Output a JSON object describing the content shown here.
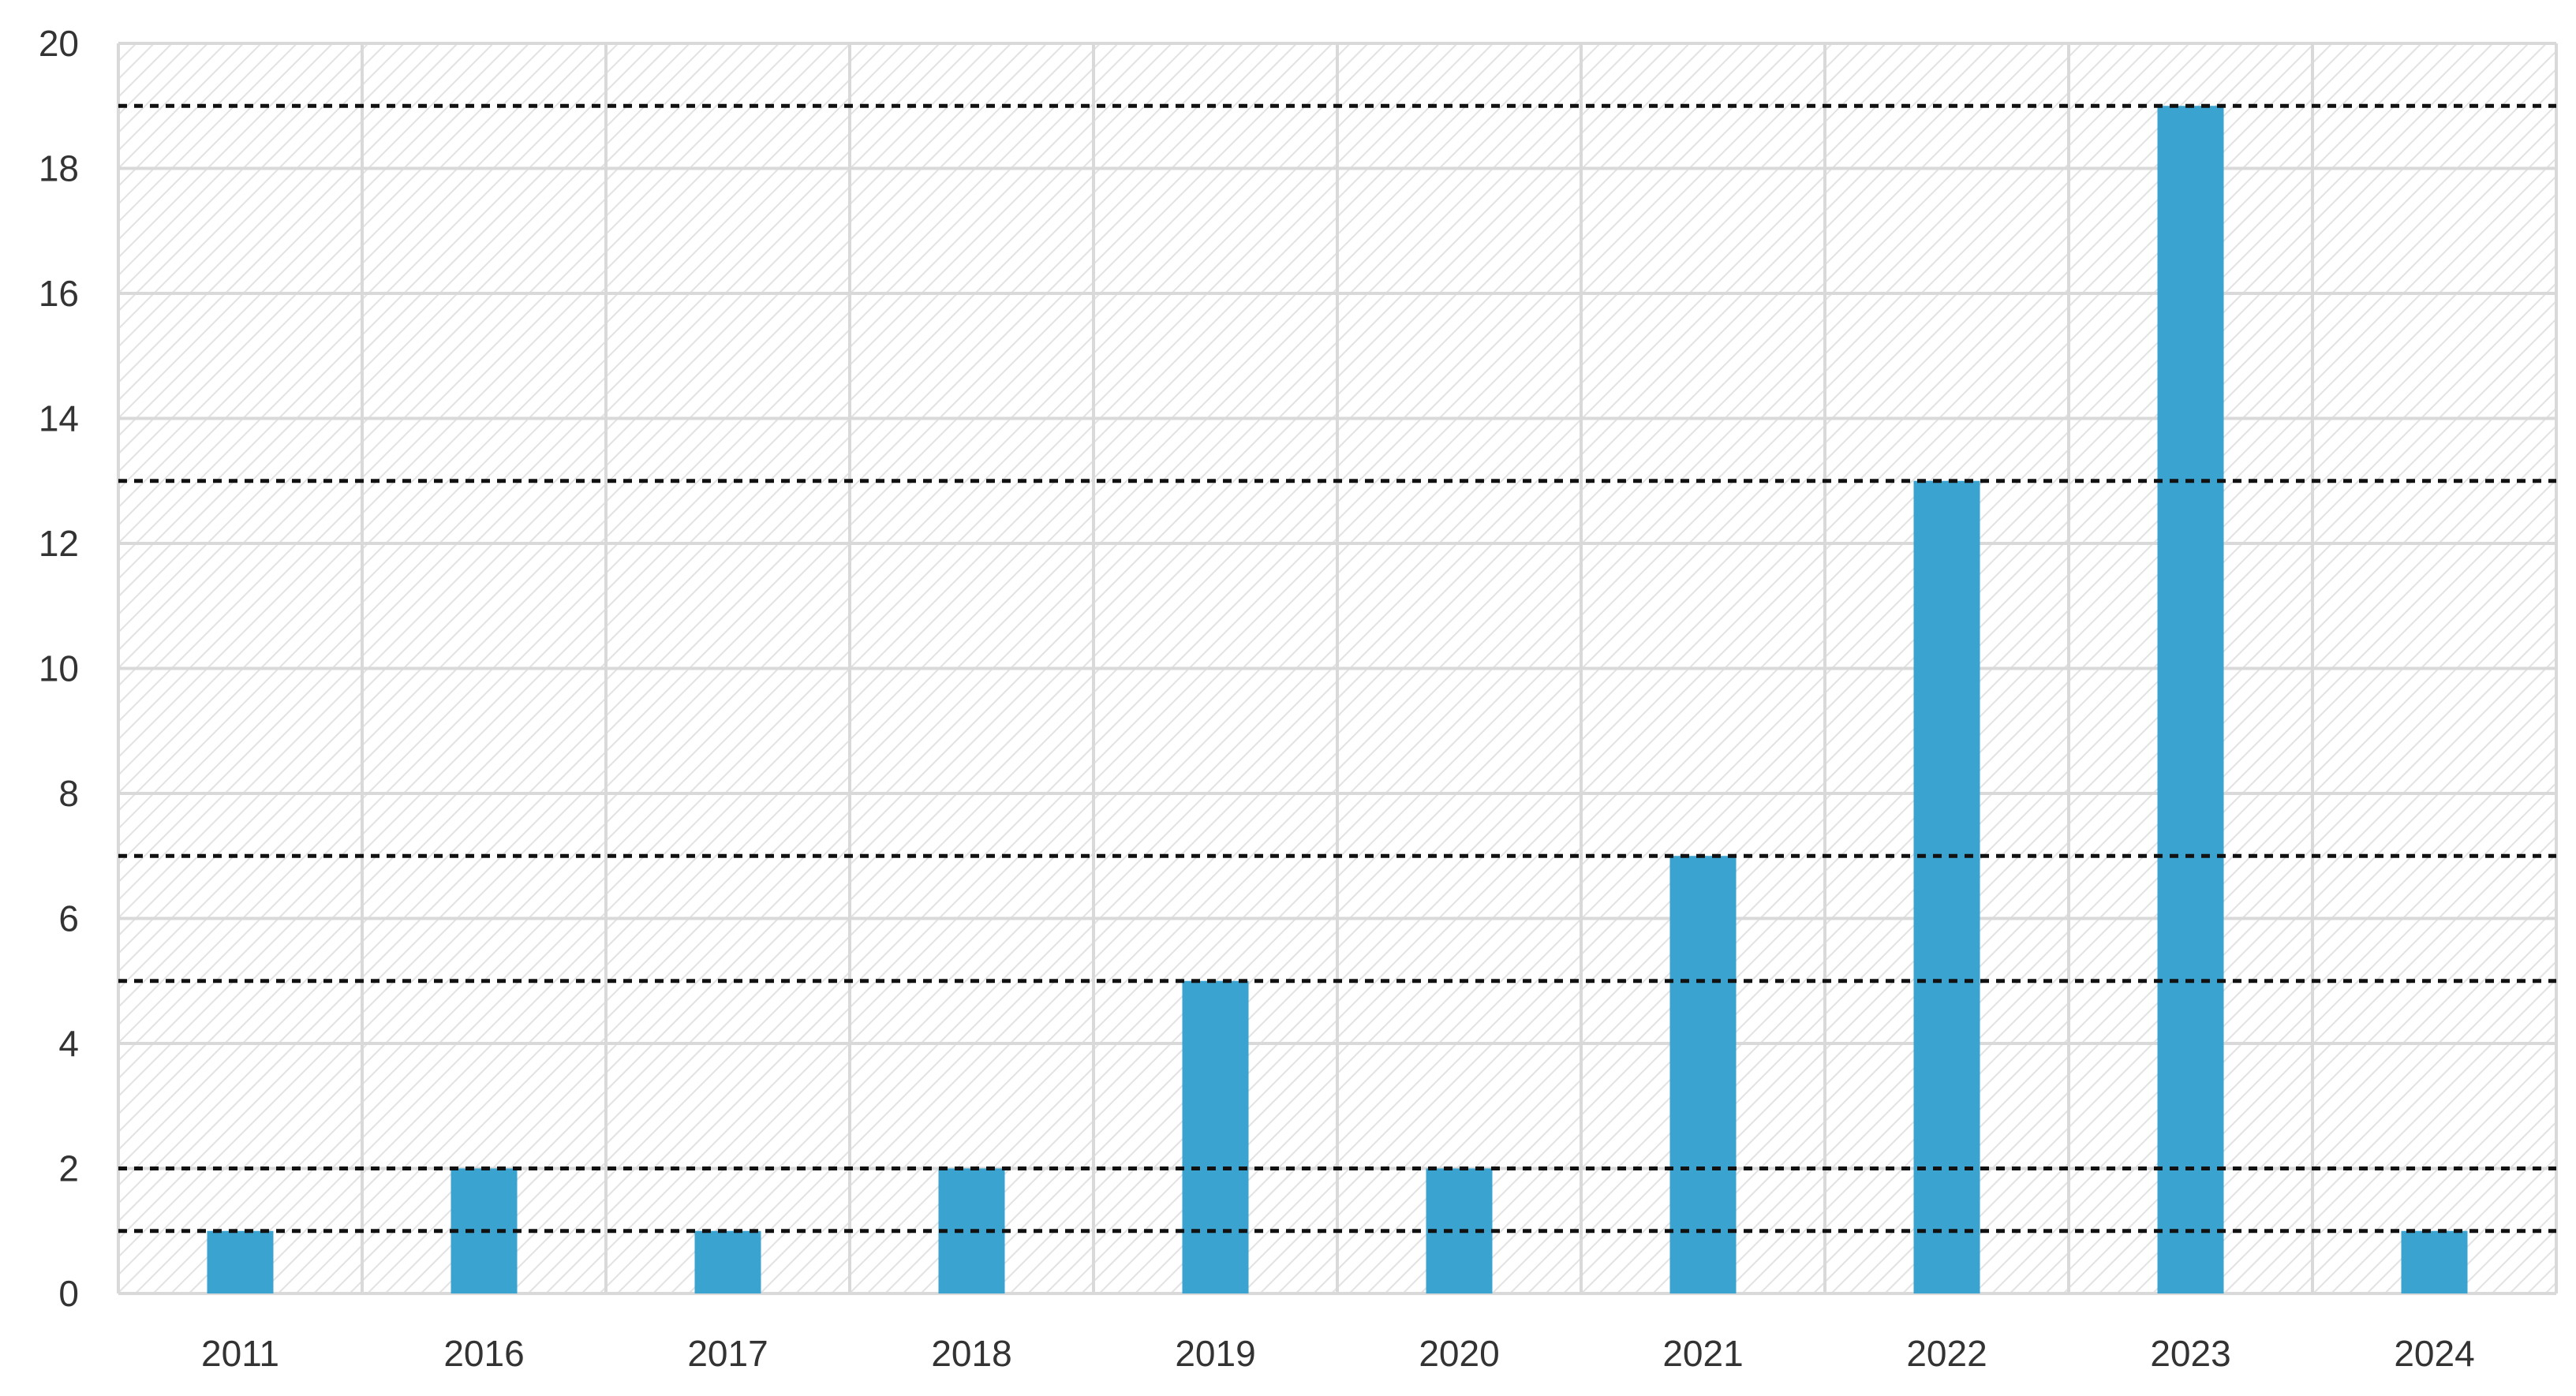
{
  "chart_data": {
    "type": "bar",
    "categories": [
      "2011",
      "2016",
      "2017",
      "2018",
      "2019",
      "2020",
      "2021",
      "2022",
      "2023",
      "2024"
    ],
    "values": [
      1,
      2,
      1,
      2,
      5,
      2,
      7,
      13,
      19,
      1
    ],
    "title": "",
    "xlabel": "",
    "ylabel": "",
    "ylim": [
      0,
      20
    ],
    "yticks": [
      "0",
      "2",
      "4",
      "6",
      "8",
      "10",
      "12",
      "14",
      "16",
      "18",
      "20"
    ],
    "grid": true,
    "hatched_background": true,
    "reference_lines": [
      1,
      2,
      5,
      7,
      13,
      19
    ],
    "colors": {
      "bar": "#3aa3d0",
      "grid": "#d9d9d9",
      "hatch": "#e2e2e2",
      "reference_line": "#111111",
      "tick_text": "#333333"
    }
  }
}
